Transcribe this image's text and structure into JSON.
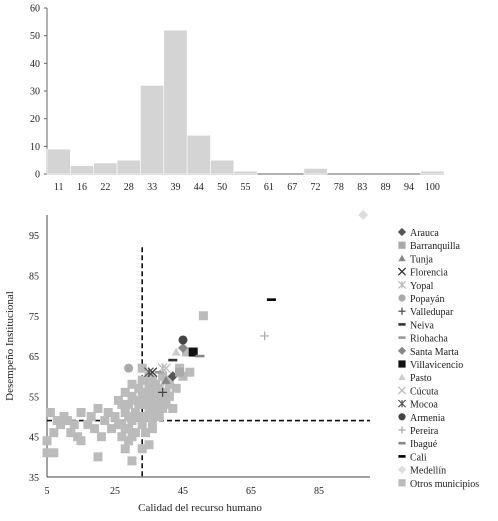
{
  "chart_data": [
    {
      "type": "bar",
      "title": "",
      "xlabel": "",
      "ylabel": "",
      "ylim": [
        0,
        60
      ],
      "yticks": [
        0,
        10,
        20,
        30,
        40,
        50,
        60
      ],
      "categories": [
        "11",
        "16",
        "22",
        "28",
        "33",
        "39",
        "44",
        "50",
        "55",
        "61",
        "67",
        "72",
        "78",
        "83",
        "89",
        "94",
        "100"
      ],
      "values": [
        9,
        3,
        4,
        5,
        32,
        52,
        14,
        5,
        1,
        0,
        0,
        2,
        0,
        0,
        0,
        0,
        1
      ],
      "grid": false,
      "colors": {
        "bar": "#d4d4d4"
      }
    },
    {
      "type": "scatter",
      "title": "",
      "xlabel": "Calidad del recurso humano",
      "ylabel": "Desempeño Institucional",
      "xlim": [
        5,
        100
      ],
      "ylim": [
        35,
        100
      ],
      "xticks": [
        5,
        25,
        45,
        65,
        85
      ],
      "yticks": [
        35,
        45,
        55,
        65,
        75,
        85,
        95
      ],
      "reference_lines": {
        "vertical_x": 33,
        "horizontal_y": 49,
        "style": "dashed"
      },
      "legend_position": "right",
      "series": [
        {
          "name": "Arauca",
          "marker": "diamond",
          "color": "#555555",
          "points": [
            [
              42,
              60
            ]
          ]
        },
        {
          "name": "Barranquilla",
          "marker": "square",
          "color": "#aaaaaa",
          "points": [
            [
              44,
              61
            ]
          ]
        },
        {
          "name": "Tunja",
          "marker": "triangle",
          "color": "#888888",
          "points": [
            [
              40,
              59
            ]
          ]
        },
        {
          "name": "Florencia",
          "marker": "x",
          "color": "#333333",
          "points": [
            [
              36,
              61
            ]
          ]
        },
        {
          "name": "Yopal",
          "marker": "star",
          "color": "#bbbbbb",
          "points": [
            [
              39,
              62
            ]
          ]
        },
        {
          "name": "Popayán",
          "marker": "circle",
          "color": "#aaaaaa",
          "points": [
            [
              29,
              62
            ]
          ]
        },
        {
          "name": "Valledupar",
          "marker": "plus",
          "color": "#444444",
          "points": [
            [
              39,
              56
            ]
          ]
        },
        {
          "name": "Neiva",
          "marker": "dash",
          "color": "#333333",
          "points": [
            [
              42,
              64
            ]
          ]
        },
        {
          "name": "Riohacha",
          "marker": "dash",
          "color": "#999999",
          "points": [
            [
              38,
              61
            ]
          ]
        },
        {
          "name": "Santa Marta",
          "marker": "diamond",
          "color": "#888888",
          "points": [
            [
              45,
              67
            ]
          ]
        },
        {
          "name": "Villavicencio",
          "marker": "square",
          "color": "#111111",
          "points": [
            [
              48,
              66
            ]
          ]
        },
        {
          "name": "Pasto",
          "marker": "triangle",
          "color": "#cccccc",
          "points": [
            [
              43,
              66
            ]
          ]
        },
        {
          "name": "Cúcuta",
          "marker": "x",
          "color": "#bbbbbb",
          "points": [
            [
              40,
              62
            ]
          ]
        },
        {
          "name": "Mocoa",
          "marker": "star",
          "color": "#555555",
          "points": [
            [
              35,
              61
            ]
          ]
        },
        {
          "name": "Armenia",
          "marker": "circle",
          "color": "#444444",
          "points": [
            [
              45,
              69
            ]
          ]
        },
        {
          "name": "Pereira",
          "marker": "plus",
          "color": "#aaaaaa",
          "points": [
            [
              69,
              70
            ]
          ]
        },
        {
          "name": "Ibagué",
          "marker": "dash",
          "color": "#888888",
          "points": [
            [
              50,
              65
            ]
          ]
        },
        {
          "name": "Cali",
          "marker": "dash",
          "color": "#000000",
          "points": [
            [
              71,
              79
            ]
          ]
        },
        {
          "name": "Medellín",
          "marker": "diamond",
          "color": "#dddddd",
          "points": [
            [
              98,
              100
            ]
          ]
        },
        {
          "name": "Otros municipios",
          "marker": "square",
          "color": "#bbbbbb",
          "points": [
            [
              5,
              44
            ],
            [
              6,
              51
            ],
            [
              7,
              46
            ],
            [
              8,
              49
            ],
            [
              9,
              48
            ],
            [
              10,
              50
            ],
            [
              5,
              41
            ],
            [
              7,
              41
            ],
            [
              11,
              49
            ],
            [
              12,
              46
            ],
            [
              13,
              48
            ],
            [
              14,
              45
            ],
            [
              15,
              51
            ],
            [
              15,
              44
            ],
            [
              17,
              48
            ],
            [
              18,
              50
            ],
            [
              19,
              47
            ],
            [
              20,
              52
            ],
            [
              21,
              45
            ],
            [
              22,
              49
            ],
            [
              23,
              51
            ],
            [
              24,
              47
            ],
            [
              25,
              50
            ],
            [
              26,
              48
            ],
            [
              27,
              53
            ],
            [
              27,
              45
            ],
            [
              28,
              51
            ],
            [
              28,
              56
            ],
            [
              29,
              47
            ],
            [
              29,
              53
            ],
            [
              30,
              49
            ],
            [
              30,
              55
            ],
            [
              30,
              58
            ],
            [
              31,
              51
            ],
            [
              31,
              46
            ],
            [
              31,
              54
            ],
            [
              32,
              50
            ],
            [
              32,
              57
            ],
            [
              32,
              53
            ],
            [
              33,
              48
            ],
            [
              33,
              55
            ],
            [
              33,
              59
            ],
            [
              33,
              62
            ],
            [
              34,
              50
            ],
            [
              34,
              53
            ],
            [
              34,
              56
            ],
            [
              34,
              46
            ],
            [
              35,
              54
            ],
            [
              35,
              58
            ],
            [
              35,
              51
            ],
            [
              35,
              60
            ],
            [
              36,
              49
            ],
            [
              36,
              53
            ],
            [
              36,
              56
            ],
            [
              36,
              59
            ],
            [
              36,
              47
            ],
            [
              37,
              52
            ],
            [
              37,
              55
            ],
            [
              37,
              58
            ],
            [
              37,
              50
            ],
            [
              38,
              54
            ],
            [
              38,
              57
            ],
            [
              38,
              53
            ],
            [
              38,
              50
            ],
            [
              39,
              55
            ],
            [
              39,
              52
            ],
            [
              39,
              60
            ],
            [
              40,
              56
            ],
            [
              40,
              53
            ],
            [
              40,
              59
            ],
            [
              41,
              55
            ],
            [
              41,
              58
            ],
            [
              42,
              52
            ],
            [
              43,
              57
            ],
            [
              44,
              62
            ],
            [
              45,
              60
            ],
            [
              46,
              66
            ],
            [
              47,
              61
            ],
            [
              51,
              75
            ],
            [
              20,
              40
            ],
            [
              30,
              39
            ],
            [
              33,
              42
            ],
            [
              29,
              44
            ],
            [
              35,
              43
            ],
            [
              30,
              45
            ],
            [
              28,
              42
            ],
            [
              27,
              48
            ],
            [
              26,
              54
            ],
            [
              29,
              50
            ],
            [
              28,
              47
            ]
          ]
        }
      ]
    }
  ]
}
